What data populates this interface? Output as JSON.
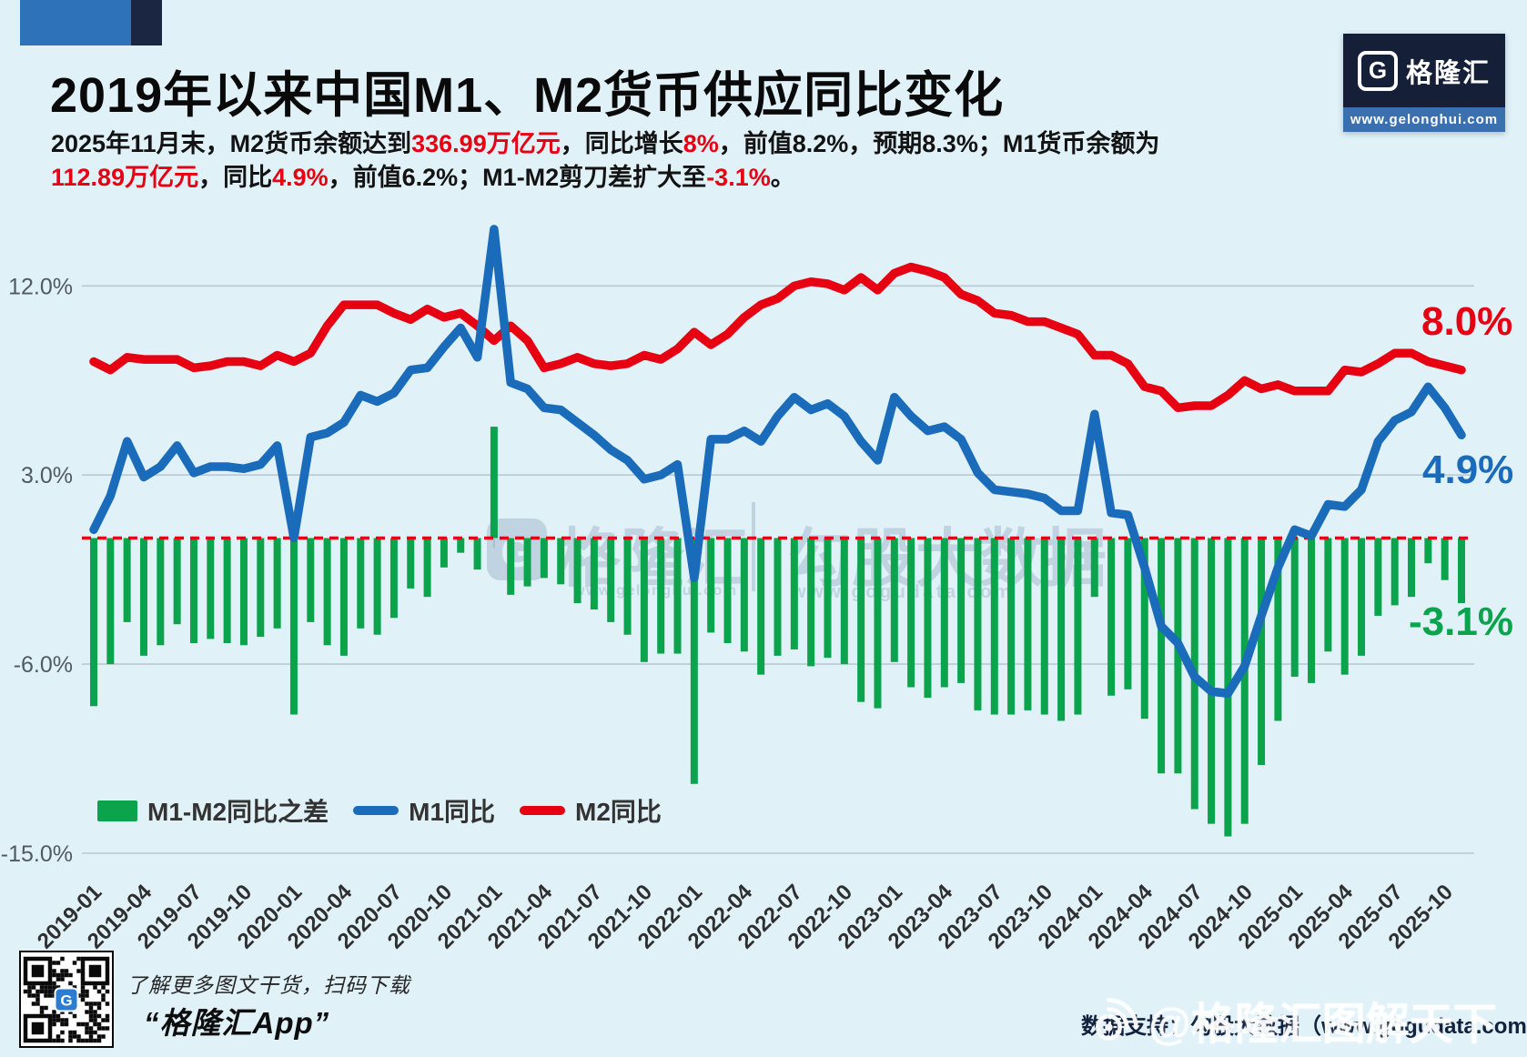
{
  "header": {
    "title": "2019年以来中国M1、M2货币供应同比变化",
    "subtitle_lines": [
      [
        {
          "t": "2025年11月末，M2货币余额达到",
          "red": false
        },
        {
          "t": "336.99万亿元",
          "red": true
        },
        {
          "t": "，同比增长",
          "red": false
        },
        {
          "t": "8%",
          "red": true
        },
        {
          "t": "，前值8.2%，预期8.3%；M1货币余额为",
          "red": false
        }
      ],
      [
        {
          "t": "112.89万亿元",
          "red": true
        },
        {
          "t": "，同比",
          "red": false
        },
        {
          "t": "4.9%",
          "red": true
        },
        {
          "t": "，前值6.2%；M1-M2剪刀差扩大至",
          "red": false
        },
        {
          "t": "-3.1%",
          "red": true
        },
        {
          "t": "。",
          "red": false
        }
      ]
    ]
  },
  "logo": {
    "glyph": "G",
    "brand": "格隆汇",
    "url": "www.gelonghui.com"
  },
  "chart_data": {
    "type": "combo",
    "frequency": "monthly",
    "x_start": "2019-01",
    "x_end": "2025-11",
    "x_tick_step_months": 3,
    "x_tick_labels": [
      "2019-01",
      "2019-04",
      "2019-07",
      "2019-10",
      "2020-01",
      "2020-04",
      "2020-07",
      "2020-10",
      "2021-01",
      "2021-04",
      "2021-07",
      "2021-10",
      "2022-01",
      "2022-04",
      "2022-07",
      "2022-10",
      "2023-01",
      "2023-04",
      "2023-07",
      "2023-10",
      "2024-01",
      "2024-04",
      "2024-07",
      "2024-10",
      "2025-01",
      "2025-04",
      "2025-07",
      "2025-10"
    ],
    "y_axis": {
      "unit": "%",
      "tick_labels": [
        "12.0%",
        "3.0%",
        "-6.0%",
        "-15.0%"
      ],
      "tick_values": [
        12,
        3,
        -6,
        -15
      ],
      "ylim": [
        -15.5,
        15.5
      ]
    },
    "grid": true,
    "legend_position": "bottom-left",
    "zero_line": {
      "value": 0,
      "style": "dashed",
      "color": "#e60012"
    },
    "series": [
      {
        "name": "M1-M2同比之差",
        "type": "bar",
        "color": "#0ba44d",
        "values": [
          -8.0,
          -6.0,
          -4.0,
          -5.6,
          -5.1,
          -4.1,
          -5.0,
          -4.8,
          -5.0,
          -5.1,
          -4.7,
          -4.3,
          -8.4,
          -4.0,
          -5.1,
          -5.6,
          -4.3,
          -4.6,
          -3.8,
          -2.4,
          -2.8,
          -1.4,
          -0.7,
          -1.5,
          5.3,
          -2.7,
          -2.3,
          -1.9,
          -2.2,
          -3.1,
          -3.4,
          -4.0,
          -4.6,
          -5.9,
          -5.5,
          -5.5,
          -11.7,
          -4.5,
          -5.0,
          -5.4,
          -6.5,
          -5.6,
          -5.3,
          -6.1,
          -5.7,
          -6.0,
          -7.8,
          -8.1,
          -5.9,
          -7.1,
          -7.6,
          -7.1,
          -6.9,
          -8.2,
          -8.4,
          -8.4,
          -8.2,
          -8.4,
          -8.7,
          -8.4,
          -2.8,
          -7.5,
          -7.2,
          -8.6,
          -11.2,
          -11.2,
          -12.9,
          -13.6,
          -14.2,
          -13.6,
          -10.8,
          -8.7,
          -6.6,
          -6.9,
          -5.4,
          -6.5,
          -5.6,
          -3.7,
          -3.2,
          -2.8,
          -1.2,
          -2.0,
          -3.1
        ]
      },
      {
        "name": "M1同比",
        "type": "line",
        "color": "#1a6cbb",
        "values": [
          0.4,
          2.0,
          4.6,
          2.9,
          3.4,
          4.4,
          3.1,
          3.4,
          3.4,
          3.3,
          3.5,
          4.4,
          0.0,
          4.8,
          5.0,
          5.5,
          6.8,
          6.5,
          6.9,
          8.0,
          8.1,
          9.1,
          10.0,
          8.6,
          14.7,
          7.4,
          7.1,
          6.2,
          6.1,
          5.5,
          4.9,
          4.2,
          3.7,
          2.8,
          3.0,
          3.5,
          -1.9,
          4.7,
          4.7,
          5.1,
          4.6,
          5.8,
          6.7,
          6.1,
          6.4,
          5.8,
          4.6,
          3.7,
          6.7,
          5.8,
          5.1,
          5.3,
          4.7,
          3.1,
          2.3,
          2.2,
          2.1,
          1.9,
          1.3,
          1.3,
          5.9,
          1.2,
          1.1,
          -1.4,
          -4.2,
          -5.0,
          -6.6,
          -7.3,
          -7.4,
          -6.1,
          -3.7,
          -1.4,
          0.4,
          0.1,
          1.6,
          1.5,
          2.3,
          4.6,
          5.6,
          6.0,
          7.2,
          6.2,
          4.9
        ]
      },
      {
        "name": "M2同比",
        "type": "line",
        "color": "#e60012",
        "values": [
          8.4,
          8.0,
          8.6,
          8.5,
          8.5,
          8.5,
          8.1,
          8.2,
          8.4,
          8.4,
          8.2,
          8.7,
          8.4,
          8.8,
          10.1,
          11.1,
          11.1,
          11.1,
          10.7,
          10.4,
          10.9,
          10.5,
          10.7,
          10.1,
          9.4,
          10.1,
          9.4,
          8.1,
          8.3,
          8.6,
          8.3,
          8.2,
          8.3,
          8.7,
          8.5,
          9.0,
          9.8,
          9.2,
          9.7,
          10.5,
          11.1,
          11.4,
          12.0,
          12.2,
          12.1,
          11.8,
          12.4,
          11.8,
          12.6,
          12.9,
          12.7,
          12.4,
          11.6,
          11.3,
          10.7,
          10.6,
          10.3,
          10.3,
          10.0,
          9.7,
          8.7,
          8.7,
          8.3,
          7.2,
          7.0,
          6.2,
          6.3,
          6.3,
          6.8,
          7.5,
          7.1,
          7.3,
          7.0,
          7.0,
          7.0,
          8.0,
          7.9,
          8.3,
          8.8,
          8.8,
          8.4,
          8.2,
          8.0
        ]
      }
    ],
    "end_labels": [
      {
        "text": "8.0%",
        "series": "M2同比",
        "color": "#e60012"
      },
      {
        "text": "4.9%",
        "series": "M1同比",
        "color": "#1a6cbb"
      },
      {
        "text": "-3.1%",
        "series": "M1-M2同比之差",
        "color": "#0ba44d"
      }
    ]
  },
  "center_watermark": {
    "glyph": "G",
    "brand": "格隆汇",
    "brand_url": "www.gelonghui.com",
    "partner": "勾股大数据",
    "partner_url": "www.gogudata.com"
  },
  "footer": {
    "qr_tip": "了解更多图文干货，扫码下载",
    "app_name": "“格隆汇App”",
    "datasource": "数据支持：勾股大数据（www.gogudata.com）",
    "watermark": "@格隆汇图解天下"
  }
}
